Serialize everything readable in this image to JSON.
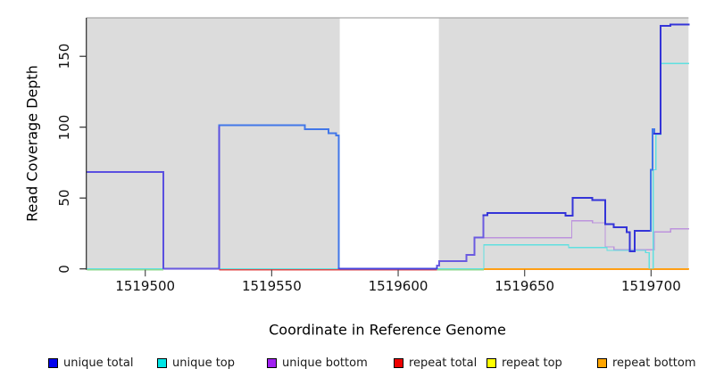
{
  "chart_data": {
    "type": "line",
    "subtype": "step-coverage",
    "title": "",
    "xlabel": "Coordinate in Reference Genome",
    "ylabel": "Read Coverage Depth",
    "x_tick_labels": [
      "1519500",
      "1519550",
      "1519600",
      "1519650",
      "1519700"
    ],
    "x_tick_values": [
      1519500,
      1519550,
      1519600,
      1519650,
      1519700
    ],
    "y_tick_labels": [
      "0",
      "50",
      "100",
      "150"
    ],
    "y_tick_values": [
      0,
      50,
      100,
      150
    ],
    "xlim": [
      1519476.7,
      1519714.8
    ],
    "ylim": [
      0,
      177
    ],
    "grid": "off",
    "panel_bg": "#dcdcdc",
    "highlight_band": {
      "x1": 1519576.9,
      "x2": 1519616.1,
      "color": "#ffffff",
      "note": "white unmasked band over gray panel"
    },
    "legend_position": "bottom",
    "legend": [
      {
        "label": "unique total",
        "color": "#0000ee"
      },
      {
        "label": "unique top",
        "color": "#00e6e6"
      },
      {
        "label": "unique bottom",
        "color": "#a020f0"
      },
      {
        "label": "repeat total",
        "color": "#ee0000"
      },
      {
        "label": "repeat top",
        "color": "#ffff00"
      },
      {
        "label": "repeat bottom",
        "color": "#ffa500"
      }
    ],
    "series": [
      {
        "name": "unique bottom",
        "color": "#bd93dd",
        "width": 1.3,
        "x_end": 1519714.8,
        "steps": [
          [
            1519477,
            68.5
          ],
          [
            1519507.2,
            0
          ],
          [
            1519615.4,
            2.3
          ],
          [
            1519616.3,
            5.5
          ],
          [
            1519626.9,
            10
          ],
          [
            1519630.2,
            22
          ],
          [
            1519668.6,
            34
          ],
          [
            1519676.8,
            32.5
          ],
          [
            1519681.9,
            15.5
          ],
          [
            1519685.3,
            13.5
          ],
          [
            1519701.3,
            26
          ],
          [
            1519707.7,
            28.2
          ]
        ]
      },
      {
        "name": "unique top",
        "color": "#5fe0e0",
        "width": 1.3,
        "x_end": 1519714.8,
        "steps": [
          [
            1519477,
            0
          ],
          [
            1519633.9,
            17
          ],
          [
            1519667.4,
            15
          ],
          [
            1519682.6,
            13
          ],
          [
            1519697.8,
            11.5
          ],
          [
            1519699.3,
            0
          ],
          [
            1519700.8,
            70
          ],
          [
            1519701.9,
            95
          ],
          [
            1519703.8,
            145
          ]
        ]
      },
      {
        "name": "unique total",
        "color": "#3434d8",
        "width": 2,
        "x_end": 1519714.8,
        "steps": [
          [
            1519477,
            68.5
          ],
          [
            1519507.2,
            0
          ],
          [
            1519529.3,
            101.5
          ],
          [
            1519563.1,
            98.6
          ],
          [
            1519572.5,
            95.8
          ],
          [
            1519575.4,
            94
          ],
          [
            1519576.6,
            0
          ],
          [
            1519615.4,
            2.3
          ],
          [
            1519616.3,
            5.5
          ],
          [
            1519626.9,
            10
          ],
          [
            1519630.2,
            22
          ],
          [
            1519633.7,
            38
          ],
          [
            1519635.3,
            39.5
          ],
          [
            1519666.2,
            37.5
          ],
          [
            1519668.9,
            50
          ],
          [
            1519676.8,
            48.5
          ],
          [
            1519681.9,
            31.5
          ],
          [
            1519685.3,
            29.5
          ],
          [
            1519690.4,
            26
          ],
          [
            1519691.5,
            12.5
          ],
          [
            1519693.6,
            27
          ],
          [
            1519699.8,
            70
          ],
          [
            1519700.6,
            98.5
          ],
          [
            1519701.3,
            95.5
          ],
          [
            1519703.8,
            171.5
          ],
          [
            1519707.7,
            172.5
          ]
        ],
        "color_overrides": [
          {
            "x1": 1519477,
            "x2": 1519529.3,
            "color": "#5a4fe0"
          },
          {
            "x1": 1519529.3,
            "x2": 1519576.8,
            "color": "#4277e8"
          },
          {
            "x1": 1519576.8,
            "x2": 1519615.4,
            "color": "#4646e0"
          },
          {
            "x1": 1519615.4,
            "x2": 1519633.7,
            "color": "#6a5ae0"
          },
          {
            "x1": 1519699.6,
            "x2": 1519701.4,
            "color": "#4277e8"
          }
        ]
      },
      {
        "name": "repeat total",
        "color": "#ee0000",
        "width": 1.3,
        "x_end": 1519714.8,
        "steps": [
          [
            1519477,
            0
          ]
        ]
      },
      {
        "name": "repeat top",
        "color": "#ffff00",
        "width": 1.3,
        "x_end": 1519714.8,
        "steps": [
          [
            1519477,
            0
          ]
        ]
      },
      {
        "name": "repeat bottom",
        "color": "#ffa500",
        "width": 1.3,
        "x_end": 1519714.8,
        "steps": [
          [
            1519477,
            0
          ]
        ]
      }
    ],
    "baseline_overlap_segments": [
      {
        "x1": 1519477,
        "x2": 1519507.2,
        "color": "#8fd98f",
        "dy": 0.8
      },
      {
        "x1": 1519507.2,
        "x2": 1519529.3,
        "color": "#6a5ae0",
        "dy": 0
      },
      {
        "x1": 1519529.3,
        "x2": 1519576.8,
        "color": "#e04848",
        "dy": 0.8
      },
      {
        "x1": 1519576.8,
        "x2": 1519615.4,
        "color": "#e04848",
        "dy": 1.2
      },
      {
        "x1": 1519576.8,
        "x2": 1519615.4,
        "color": "#4646e0",
        "dy": 0
      },
      {
        "x1": 1519615.4,
        "x2": 1519633.9,
        "color": "#8fd98f",
        "dy": 0.8
      },
      {
        "x1": 1519633.9,
        "x2": 1519714.8,
        "color": "#ff9d1c",
        "dy": 0.5
      }
    ],
    "legend_layout_x": [
      54,
      176,
      299,
      441,
      545,
      669
    ]
  }
}
